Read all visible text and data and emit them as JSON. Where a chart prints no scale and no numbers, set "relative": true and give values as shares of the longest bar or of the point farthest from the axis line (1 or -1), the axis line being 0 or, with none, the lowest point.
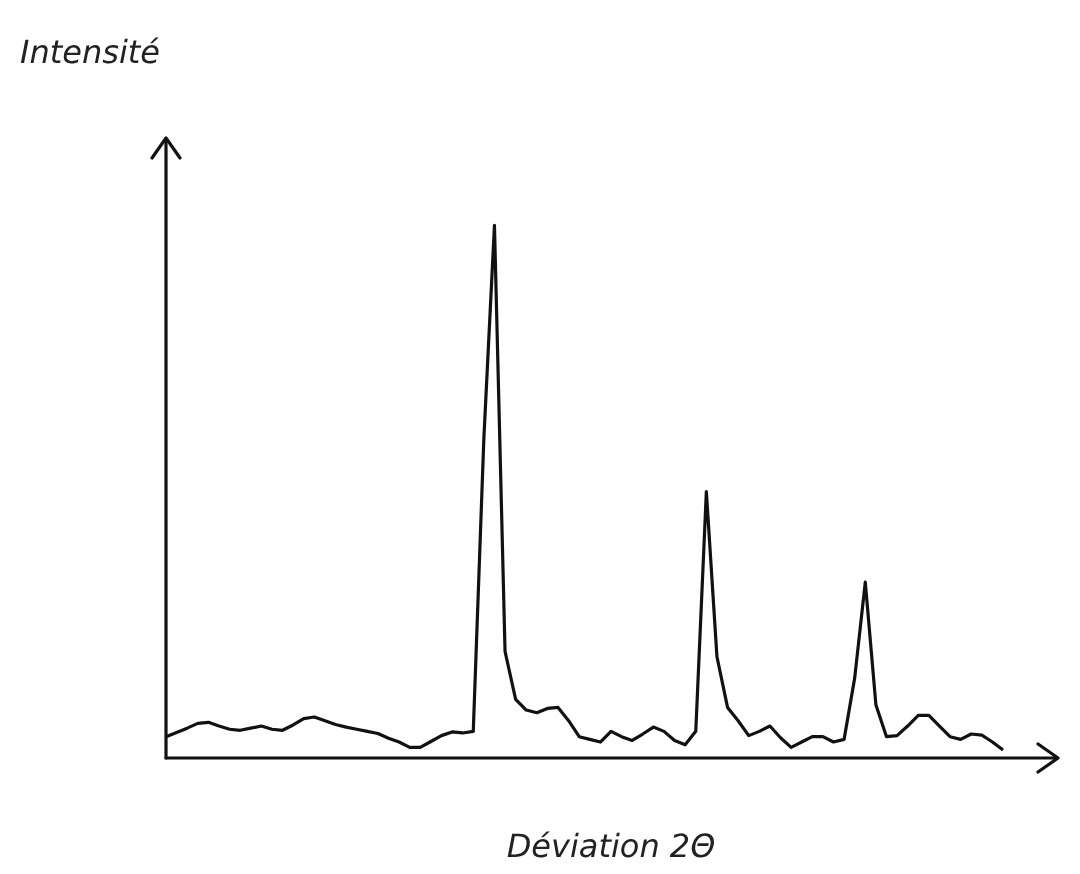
{
  "chart_data": {
    "type": "line",
    "relative": true,
    "xlabel": "Déviation 2Θ",
    "ylabel": "Intensité",
    "marker": "none",
    "grid": false,
    "categories": [
      null,
      null,
      null,
      null,
      null,
      null,
      null,
      null,
      null,
      null,
      null,
      null,
      null,
      null,
      null,
      null,
      null,
      null,
      null,
      null,
      null,
      null,
      null,
      null,
      null,
      null,
      null,
      null,
      null,
      null,
      null,
      null,
      null,
      null,
      null,
      null,
      null,
      null,
      null,
      null,
      null,
      null,
      null,
      null,
      null,
      null,
      null,
      null,
      null,
      null,
      null,
      null,
      null,
      null,
      null,
      null,
      null,
      null,
      null,
      null,
      null,
      null,
      null,
      null,
      null,
      null,
      null,
      null,
      null,
      null,
      null,
      null,
      null,
      null,
      null,
      null,
      null,
      null,
      null,
      null,
      null,
      null,
      null,
      null,
      null
    ],
    "series": [
      {
        "color": "#111111",
        "values": [
          0.04,
          0.048,
          0.056,
          0.065,
          0.067,
          0.06,
          0.054,
          0.052,
          0.056,
          0.06,
          0.054,
          0.052,
          0.062,
          0.074,
          0.077,
          0.07,
          0.063,
          0.058,
          0.054,
          0.05,
          0.046,
          0.037,
          0.03,
          0.02,
          0.02,
          0.031,
          0.042,
          0.049,
          0.047,
          0.05,
          0.6,
          1,
          0.2,
          0.11,
          0.09,
          0.085,
          0.093,
          0.095,
          0.07,
          0.04,
          0.035,
          0.03,
          0.05,
          0.04,
          0.033,
          0.045,
          0.058,
          0.05,
          0.033,
          0.025,
          0.05,
          0.5,
          0.19,
          0.095,
          0.07,
          0.042,
          0.05,
          0.06,
          0.038,
          0.02,
          0.03,
          0.04,
          0.04,
          0.03,
          0.035,
          0.15,
          0.33,
          0.1,
          0.04,
          0.042,
          0.06,
          0.08,
          0.08,
          0.06,
          0.04,
          0.035,
          0.045,
          0.043,
          0.03,
          0.015,
          null,
          null,
          null,
          null,
          null
        ]
      }
    ]
  }
}
